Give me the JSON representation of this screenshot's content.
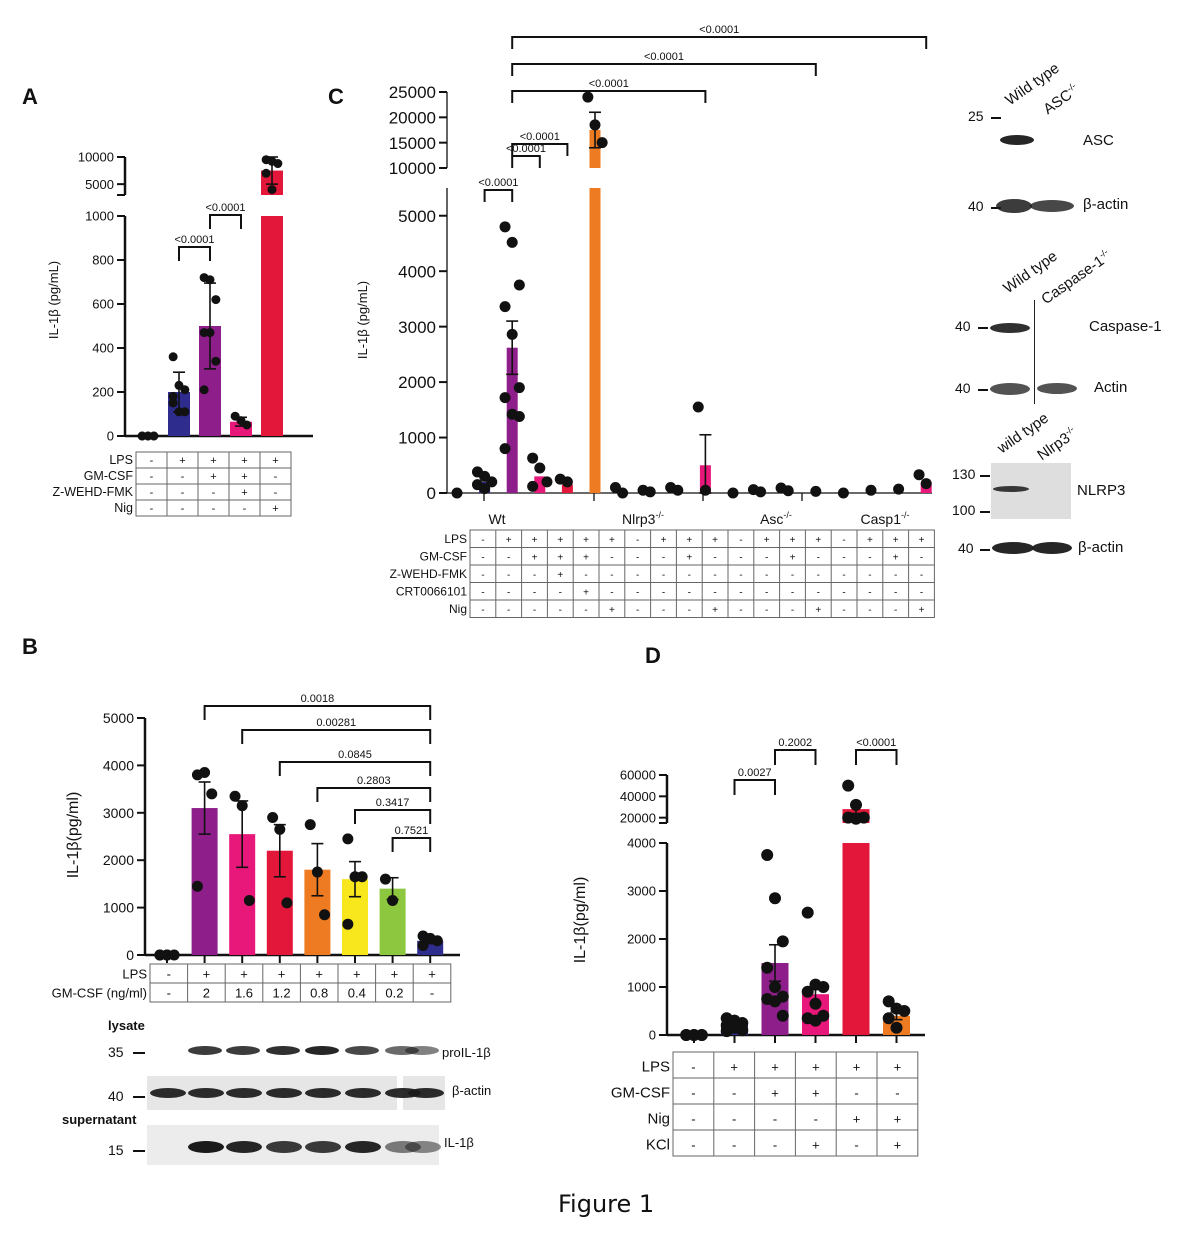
{
  "figure_caption": "Figure 1",
  "panels": {
    "A": "A",
    "B": "B",
    "C": "C",
    "D": "D"
  },
  "chart_data": [
    {
      "id": "A",
      "type": "bar",
      "ylabel": "IL-1β (pg/mL)",
      "y_segments": [
        {
          "range": [
            0,
            1000
          ],
          "ticks": [
            0,
            200,
            400,
            600,
            800,
            1000
          ]
        },
        {
          "range": [
            3000,
            10000
          ],
          "ticks": [
            5000,
            10000
          ]
        }
      ],
      "categories": [
        "1",
        "2",
        "3",
        "4",
        "5"
      ],
      "bars": [
        {
          "mean": 0,
          "sd": 0,
          "color": "#2e2c8c",
          "points": [
            0,
            0,
            0,
            0,
            0,
            0
          ]
        },
        {
          "mean": 200,
          "sd": 90,
          "color": "#2e2c8c",
          "points": [
            360,
            230,
            210,
            180,
            110,
            110,
            150
          ]
        },
        {
          "mean": 500,
          "sd": 195,
          "color": "#8e1f8a",
          "points": [
            720,
            710,
            620,
            470,
            470,
            340,
            210
          ]
        },
        {
          "mean": 65,
          "sd": 20,
          "color": "#e8177a",
          "points": [
            90,
            70,
            50
          ]
        },
        {
          "mean": 7500,
          "sd": 2500,
          "color": "#e3173a",
          "points": [
            9500,
            9200,
            8800,
            7000,
            4000
          ]
        }
      ],
      "comparisons": [
        {
          "from": 1,
          "to": 2,
          "label": "<0.0001"
        },
        {
          "from": 2,
          "to": 3,
          "label": "<0.0001"
        }
      ],
      "table": {
        "rows": [
          {
            "label": "LPS",
            "values": [
              "-",
              "+",
              "+",
              "+",
              "+"
            ]
          },
          {
            "label": "GM-CSF",
            "values": [
              "-",
              "-",
              "+",
              "+",
              "-"
            ]
          },
          {
            "label": "Z-WEHD-FMK",
            "values": [
              "-",
              "-",
              "-",
              "+",
              "-"
            ]
          },
          {
            "label": "Nig",
            "values": [
              "-",
              "-",
              "-",
              "-",
              "+"
            ]
          }
        ]
      }
    },
    {
      "id": "B",
      "type": "bar",
      "ylabel": "IL-1β(pg/ml)",
      "ylim": [
        0,
        5000
      ],
      "ticks": [
        0,
        1000,
        2000,
        3000,
        4000,
        5000
      ],
      "categories": [
        "1",
        "2",
        "3",
        "4",
        "5",
        "6",
        "7",
        "8"
      ],
      "bars": [
        {
          "mean": 0,
          "sem": 0,
          "color": "#8e1f8a",
          "points": [
            0,
            0,
            0,
            0,
            0
          ]
        },
        {
          "mean": 3100,
          "sem": 550,
          "color": "#8e1f8a",
          "points": [
            3800,
            3850,
            3400,
            1450
          ]
        },
        {
          "mean": 2550,
          "sem": 700,
          "color": "#e8177a",
          "points": [
            3350,
            3150,
            1150
          ]
        },
        {
          "mean": 2200,
          "sem": 550,
          "color": "#e3173a",
          "points": [
            2900,
            2650,
            1100
          ]
        },
        {
          "mean": 1800,
          "sem": 550,
          "color": "#ee7b22",
          "points": [
            2750,
            1750,
            850
          ]
        },
        {
          "mean": 1600,
          "sem": 370,
          "color": "#f7e71c",
          "points": [
            2450,
            1650,
            1650,
            650
          ]
        },
        {
          "mean": 1400,
          "sem": 230,
          "color": "#8dc63f",
          "points": [
            1600,
            1150
          ]
        },
        {
          "mean": 300,
          "sem": 60,
          "color": "#2e2c8c",
          "points": [
            400,
            350,
            300,
            200
          ]
        }
      ],
      "comparisons": [
        {
          "from": 1,
          "to": 7,
          "label": "0.0018"
        },
        {
          "from": 2,
          "to": 7,
          "label": "0.00281"
        },
        {
          "from": 3,
          "to": 7,
          "label": "0.0845"
        },
        {
          "from": 4,
          "to": 7,
          "label": "0.2803"
        },
        {
          "from": 5,
          "to": 7,
          "label": "0.3417"
        },
        {
          "from": 6,
          "to": 7,
          "label": "0.7521"
        }
      ],
      "table": {
        "rows": [
          {
            "label": "LPS",
            "values": [
              "-",
              "+",
              "+",
              "+",
              "+",
              "+",
              "+",
              "+"
            ]
          },
          {
            "label": "GM-CSF (ng/ml)",
            "values": [
              "-",
              "2",
              "1.6",
              "1.2",
              "0.8",
              "0.4",
              "0.2",
              "-"
            ]
          }
        ]
      }
    },
    {
      "id": "C",
      "type": "bar",
      "ylabel": "IL-1β (pg/mL)",
      "y_segments": [
        {
          "range": [
            0,
            5500
          ],
          "ticks": [
            0,
            1000,
            2000,
            3000,
            4000,
            5000
          ]
        },
        {
          "range": [
            10000,
            25000
          ],
          "ticks": [
            10000,
            15000,
            20000,
            25000
          ]
        }
      ],
      "group_labels": [
        {
          "text": "Wt",
          "sup": ""
        },
        {
          "text": "Nlrp3",
          "sup": "-/-"
        },
        {
          "text": "Asc",
          "sup": "-/-"
        },
        {
          "text": "Casp1",
          "sup": "-/-"
        }
      ],
      "bars": [
        {
          "mean": 0,
          "err": 0,
          "color": "#8e1f8a",
          "points": [
            0
          ]
        },
        {
          "mean": 200,
          "err": 0,
          "color": "#2e2c8c",
          "points": [
            380,
            300,
            200,
            150,
            80
          ]
        },
        {
          "mean": 2620,
          "err": 480,
          "color": "#8e1f8a",
          "points": [
            4800,
            4520,
            3750,
            3360,
            2860,
            1900,
            1720,
            1420,
            1380,
            800
          ]
        },
        {
          "mean": 300,
          "err": 0,
          "color": "#e8177a",
          "points": [
            630,
            450,
            200,
            120
          ]
        },
        {
          "mean": 150,
          "err": 0,
          "color": "#e3173a",
          "points": [
            250,
            200
          ]
        },
        {
          "mean": 17500,
          "err": 3500,
          "color": "#ee7b22",
          "points": [
            24000,
            18500,
            15000
          ]
        },
        {
          "mean": 0,
          "err": 0,
          "color": "#2e2c8c",
          "points": [
            100,
            0
          ]
        },
        {
          "mean": 0,
          "err": 0,
          "color": "#2e2c8c",
          "points": [
            50,
            20
          ]
        },
        {
          "mean": 0,
          "err": 0,
          "color": "#8e1f8a",
          "points": [
            100,
            50
          ]
        },
        {
          "mean": 500,
          "err": 550,
          "color": "#e8177a",
          "points": [
            1550,
            50
          ]
        },
        {
          "mean": 0,
          "err": 0,
          "color": "#2e2c8c",
          "points": [
            0
          ]
        },
        {
          "mean": 0,
          "err": 0,
          "color": "#2e2c8c",
          "points": [
            60,
            20
          ]
        },
        {
          "mean": 0,
          "err": 0,
          "color": "#8e1f8a",
          "points": [
            90,
            40
          ]
        },
        {
          "mean": 0,
          "err": 0,
          "color": "#e3173a",
          "points": [
            30
          ]
        },
        {
          "mean": 0,
          "err": 0,
          "color": "#2e2c8c",
          "points": [
            0
          ]
        },
        {
          "mean": 0,
          "err": 0,
          "color": "#2e2c8c",
          "points": [
            50
          ]
        },
        {
          "mean": 0,
          "err": 0,
          "color": "#8e1f8a",
          "points": [
            70
          ]
        },
        {
          "mean": 180,
          "err": 0,
          "color": "#e8177a",
          "points": [
            330,
            170
          ]
        }
      ],
      "comparisons": [
        {
          "from": 1,
          "to": 2,
          "label": "<0.0001"
        },
        {
          "from": 2,
          "to": 3,
          "label": "<0.0001"
        },
        {
          "from": 2,
          "to": 4,
          "label": "<0.0001"
        },
        {
          "from": 2,
          "to": 9,
          "label": "<0.0001"
        },
        {
          "from": 2,
          "to": 13,
          "label": "<0.0001"
        },
        {
          "from": 2,
          "to": 17,
          "label": "<0.0001"
        }
      ],
      "table": {
        "rows": [
          {
            "label": "LPS",
            "values": [
              "-",
              "+",
              "+",
              "+",
              "+",
              "+",
              "-",
              "+",
              "+",
              "+",
              "-",
              "+",
              "+",
              "+",
              "-",
              "+",
              "+",
              "+"
            ]
          },
          {
            "label": "GM-CSF",
            "values": [
              "-",
              "-",
              "+",
              "+",
              "+",
              "-",
              "-",
              "-",
              "+",
              "-",
              "-",
              "-",
              "+",
              "-",
              "-",
              "-",
              "+",
              "-"
            ]
          },
          {
            "label": "Z-WEHD-FMK",
            "values": [
              "-",
              "-",
              "-",
              "+",
              "-",
              "-",
              "-",
              "-",
              "-",
              "-",
              "-",
              "-",
              "-",
              "-",
              "-",
              "-",
              "-",
              "-"
            ]
          },
          {
            "label": "CRT0066101",
            "values": [
              "-",
              "-",
              "-",
              "-",
              "+",
              "-",
              "-",
              "-",
              "-",
              "-",
              "-",
              "-",
              "-",
              "-",
              "-",
              "-",
              "-",
              "-"
            ]
          },
          {
            "label": "Nig",
            "values": [
              "-",
              "-",
              "-",
              "-",
              "-",
              "+",
              "-",
              "-",
              "-",
              "+",
              "-",
              "-",
              "-",
              "+",
              "-",
              "-",
              "-",
              "+"
            ]
          }
        ]
      }
    },
    {
      "id": "D",
      "type": "bar",
      "ylabel": "IL-1β(pg/ml)",
      "y_segments": [
        {
          "range": [
            0,
            4000
          ],
          "ticks": [
            0,
            1000,
            2000,
            3000,
            4000
          ]
        },
        {
          "range": [
            15000,
            60000
          ],
          "ticks": [
            20000,
            40000,
            60000
          ]
        }
      ],
      "categories": [
        "1",
        "2",
        "3",
        "4",
        "5",
        "6"
      ],
      "bars": [
        {
          "mean": 0,
          "err": 0,
          "color": "#2e2c8c",
          "points": [
            0,
            0,
            0,
            0,
            0,
            0
          ]
        },
        {
          "mean": 250,
          "err": 0,
          "color": "#2e2c8c",
          "points": [
            350,
            300,
            250,
            200,
            150,
            100,
            80
          ]
        },
        {
          "mean": 1500,
          "err": 380,
          "color": "#8e1f8a",
          "points": [
            3750,
            2850,
            1950,
            1400,
            1000,
            800,
            750,
            700,
            400
          ]
        },
        {
          "mean": 850,
          "err": 200,
          "color": "#e8177a",
          "points": [
            2550,
            1050,
            1000,
            900,
            650,
            400,
            350,
            300
          ]
        },
        {
          "mean": 28000,
          "err": 4000,
          "color": "#e3173a",
          "points": [
            50000,
            32000,
            20000,
            20000,
            19000
          ]
        },
        {
          "mean": 400,
          "err": 80,
          "color": "#ee7b22",
          "points": [
            700,
            550,
            500,
            350,
            150
          ]
        }
      ],
      "comparisons": [
        {
          "from": 1,
          "to": 2,
          "label": "0.0027"
        },
        {
          "from": 2,
          "to": 3,
          "label": "0.2002"
        },
        {
          "from": 4,
          "to": 5,
          "label": "<0.0001"
        }
      ],
      "table": {
        "rows": [
          {
            "label": "LPS",
            "values": [
              "-",
              "+",
              "+",
              "+",
              "+",
              "+"
            ]
          },
          {
            "label": "GM-CSF",
            "values": [
              "-",
              "-",
              "+",
              "+",
              "-",
              "-"
            ]
          },
          {
            "label": "Nig",
            "values": [
              "-",
              "-",
              "-",
              "-",
              "+",
              "+"
            ]
          },
          {
            "label": "KCl",
            "values": [
              "-",
              "-",
              "-",
              "+",
              "-",
              "+"
            ]
          }
        ]
      }
    }
  ],
  "blots": {
    "B": {
      "lysate_label": "lysate",
      "supernatant_label": "supernatant",
      "rows": [
        {
          "mw": "35",
          "label": "proIL-1β"
        },
        {
          "mw": "40",
          "label": "β-actin"
        },
        {
          "mw": "15",
          "label": "IL-1β"
        }
      ]
    },
    "C_asc": {
      "lanes": [
        {
          "text": "Wild type",
          "sup": ""
        },
        {
          "text": "ASC",
          "sup": "-/-"
        }
      ],
      "rows": [
        {
          "mw": "25",
          "label": "ASC"
        },
        {
          "mw": "40",
          "label": "β-actin"
        }
      ]
    },
    "C_casp": {
      "lanes": [
        {
          "text": "Wild type",
          "sup": ""
        },
        {
          "text": "Caspase-1",
          "sup": "-/-"
        }
      ],
      "rows": [
        {
          "mw": "40",
          "label": "Caspase-1"
        },
        {
          "mw": "40",
          "label": "Actin"
        }
      ]
    },
    "C_nlrp3": {
      "lanes": [
        {
          "text": "wild type",
          "sup": ""
        },
        {
          "text": "Nlrp3",
          "sup": "-/-"
        }
      ],
      "rows": [
        {
          "mw": "130",
          "label": "NLRP3"
        },
        {
          "mw": "100",
          "label": ""
        },
        {
          "mw": "40",
          "label": "β-actin"
        }
      ]
    }
  }
}
